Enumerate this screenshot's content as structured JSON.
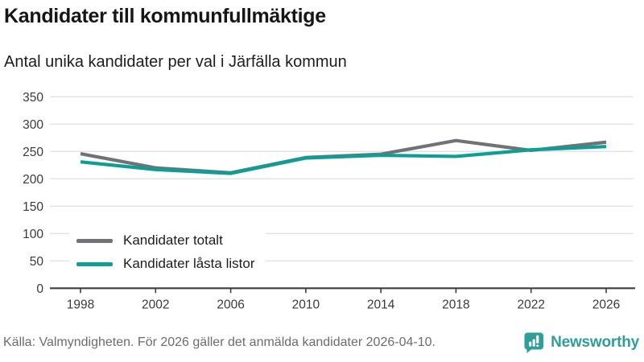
{
  "header": {
    "title": "Kandidater till kommunfullmäktige",
    "subtitle": "Antal unika kandidater per val i Järfälla kommun"
  },
  "chart_data": {
    "type": "line",
    "categories": [
      "1998",
      "2002",
      "2006",
      "2010",
      "2014",
      "2018",
      "2022",
      "2026"
    ],
    "series": [
      {
        "name": "Kandidater totalt",
        "color": "#727176",
        "values": [
          246,
          220,
          211,
          239,
          245,
          270,
          252,
          267
        ]
      },
      {
        "name": "Kandidater låsta listor",
        "color": "#0d9e96",
        "values": [
          231,
          217,
          210,
          238,
          243,
          241,
          253,
          259
        ]
      }
    ],
    "title": "Kandidater till kommunfullmäktige",
    "subtitle": "Antal unika kandidater per val i Järfälla kommun",
    "xlabel": "",
    "ylabel": "",
    "ylim": [
      0,
      350
    ],
    "ytick_step": 50,
    "grid": true,
    "legend_position": "inside-bottom-left"
  },
  "footer": {
    "source": "Källa: Valmyndigheten. För 2026 gäller det anmälda kandidater 2026-04-10.",
    "brand": "Newsworthy"
  },
  "colors": {
    "accent_teal": "#0d9e96",
    "series_gray": "#727176",
    "brand_teal": "#2f9e98",
    "grid": "#e2e2e2",
    "axis": "#3f3f3f",
    "tick_text": "#3a3a3a",
    "source_text": "#6c6c6c"
  }
}
